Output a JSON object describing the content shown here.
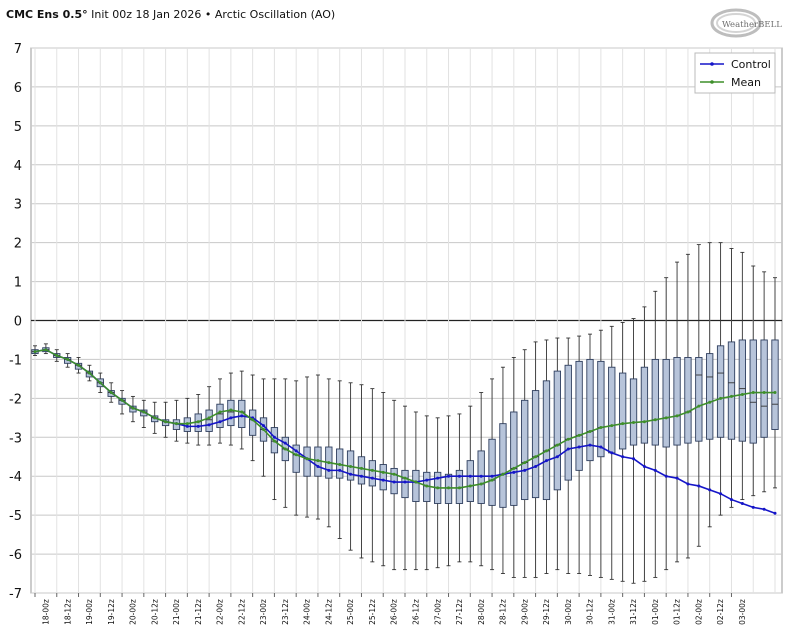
{
  "header": {
    "model": "CMC Ens 0.5°",
    "rest": "Init 00z 18 Jan 2026 • Arctic Oscillation (AO)",
    "logo_text": "WeatherBELL"
  },
  "chart_data": {
    "type": "box",
    "title": "CMC Ens 0.5° Init 00z 18 Jan 2026 • Arctic Oscillation (AO)",
    "ylim": [
      -7,
      7
    ],
    "yticks": [
      -7,
      -6,
      -5,
      -4,
      -3,
      -2,
      -1,
      0,
      1,
      2,
      3,
      4,
      5,
      6,
      7
    ],
    "grid": true,
    "legend_position": "top-right",
    "x_labels": [
      "18-00z",
      "18-12z",
      "19-00z",
      "19-12z",
      "20-00z",
      "20-12z",
      "21-00z",
      "21-12z",
      "22-00z",
      "22-12z",
      "23-00z",
      "23-12z",
      "24-00z",
      "24-12z",
      "25-00z",
      "25-12z",
      "26-00z",
      "26-12z",
      "27-00z",
      "27-12z",
      "28-00z",
      "28-12z",
      "29-00z",
      "29-12z",
      "30-00z",
      "30-12z",
      "31-00z",
      "31-12z",
      "01-00z",
      "01-12z",
      "02-00z",
      "02-12z",
      "03-00z"
    ],
    "series": [
      {
        "name": "Control",
        "color": "#1515c8",
        "values": [
          -0.8,
          -0.75,
          -0.9,
          -1.0,
          -1.15,
          -1.35,
          -1.6,
          -1.85,
          -2.05,
          -2.25,
          -2.35,
          -2.5,
          -2.6,
          -2.65,
          -2.72,
          -2.72,
          -2.68,
          -2.6,
          -2.5,
          -2.45,
          -2.5,
          -2.7,
          -3.0,
          -3.15,
          -3.35,
          -3.55,
          -3.75,
          -3.85,
          -3.85,
          -3.95,
          -4.0,
          -4.05,
          -4.1,
          -4.15,
          -4.15,
          -4.15,
          -4.1,
          -4.05,
          -4.0,
          -4.0,
          -4.0,
          -4.0,
          -4.0,
          -3.95,
          -3.9,
          -3.85,
          -3.75,
          -3.6,
          -3.5,
          -3.3,
          -3.25,
          -3.2,
          -3.25,
          -3.4,
          -3.5,
          -3.55,
          -3.75,
          -3.85,
          -4.0,
          -4.05,
          -4.2,
          -4.25,
          -4.35,
          -4.45,
          -4.6,
          -4.7,
          -4.8,
          -4.85,
          -4.95
        ]
      },
      {
        "name": "Mean",
        "color": "#3e8f2a",
        "values": [
          -0.8,
          -0.75,
          -0.9,
          -1.0,
          -1.15,
          -1.35,
          -1.6,
          -1.85,
          -2.05,
          -2.25,
          -2.35,
          -2.5,
          -2.6,
          -2.65,
          -2.65,
          -2.6,
          -2.5,
          -2.35,
          -2.3,
          -2.35,
          -2.55,
          -2.8,
          -3.1,
          -3.3,
          -3.45,
          -3.55,
          -3.6,
          -3.65,
          -3.7,
          -3.75,
          -3.8,
          -3.85,
          -3.9,
          -3.95,
          -4.05,
          -4.15,
          -4.25,
          -4.3,
          -4.3,
          -4.3,
          -4.25,
          -4.2,
          -4.1,
          -3.95,
          -3.8,
          -3.65,
          -3.5,
          -3.35,
          -3.2,
          -3.05,
          -2.95,
          -2.85,
          -2.75,
          -2.7,
          -2.65,
          -2.62,
          -2.6,
          -2.55,
          -2.5,
          -2.45,
          -2.35,
          -2.2,
          -2.1,
          -2.0,
          -1.95,
          -1.9,
          -1.85,
          -1.85,
          -1.85
        ]
      }
    ],
    "boxes": {
      "lower_whisker": [
        -0.9,
        -0.85,
        -1.05,
        -1.2,
        -1.35,
        -1.55,
        -1.85,
        -2.1,
        -2.4,
        -2.6,
        -2.75,
        -2.9,
        -3.0,
        -3.1,
        -3.15,
        -3.2,
        -3.2,
        -3.15,
        -3.2,
        -3.3,
        -3.6,
        -4.0,
        -4.6,
        -4.8,
        -5.0,
        -5.05,
        -5.1,
        -5.3,
        -5.6,
        -5.9,
        -6.1,
        -6.2,
        -6.3,
        -6.4,
        -6.4,
        -6.4,
        -6.4,
        -6.35,
        -6.3,
        -6.2,
        -6.2,
        -6.3,
        -6.4,
        -6.5,
        -6.6,
        -6.6,
        -6.6,
        -6.5,
        -6.4,
        -6.5,
        -6.5,
        -6.55,
        -6.6,
        -6.65,
        -6.7,
        -6.75,
        -6.7,
        -6.6,
        -6.4,
        -6.2,
        -6.1,
        -5.8,
        -5.3,
        -5.0,
        -4.8,
        -4.6,
        -4.5,
        -4.4,
        -4.3
      ],
      "q1": [
        -0.85,
        -0.8,
        -0.95,
        -1.1,
        -1.25,
        -1.45,
        -1.7,
        -1.95,
        -2.15,
        -2.35,
        -2.45,
        -2.6,
        -2.7,
        -2.8,
        -2.85,
        -2.85,
        -2.85,
        -2.75,
        -2.7,
        -2.75,
        -2.95,
        -3.1,
        -3.4,
        -3.6,
        -3.9,
        -4.0,
        -4.0,
        -4.05,
        -4.05,
        -4.1,
        -4.2,
        -4.25,
        -4.35,
        -4.45,
        -4.55,
        -4.65,
        -4.65,
        -4.7,
        -4.7,
        -4.7,
        -4.65,
        -4.7,
        -4.75,
        -4.8,
        -4.75,
        -4.6,
        -4.55,
        -4.6,
        -4.35,
        -4.1,
        -3.85,
        -3.6,
        -3.5,
        -3.4,
        -3.3,
        -3.2,
        -3.15,
        -3.2,
        -3.25,
        -3.2,
        -3.15,
        -3.1,
        -3.05,
        -3.0,
        -3.05,
        -3.1,
        -3.15,
        -3.0,
        -2.8
      ],
      "q3": [
        -0.75,
        -0.7,
        -0.85,
        -0.95,
        -1.1,
        -1.3,
        -1.5,
        -1.8,
        -2.0,
        -2.2,
        -2.3,
        -2.45,
        -2.55,
        -2.55,
        -2.5,
        -2.4,
        -2.3,
        -2.15,
        -2.05,
        -2.05,
        -2.3,
        -2.5,
        -2.75,
        -3.0,
        -3.2,
        -3.25,
        -3.25,
        -3.25,
        -3.3,
        -3.35,
        -3.5,
        -3.6,
        -3.7,
        -3.8,
        -3.85,
        -3.85,
        -3.9,
        -3.9,
        -3.95,
        -3.85,
        -3.6,
        -3.35,
        -3.05,
        -2.65,
        -2.35,
        -2.05,
        -1.8,
        -1.55,
        -1.3,
        -1.15,
        -1.05,
        -1.0,
        -1.05,
        -1.2,
        -1.35,
        -1.5,
        -1.2,
        -1.0,
        -1.0,
        -0.95,
        -0.95,
        -0.95,
        -0.85,
        -0.65,
        -0.55,
        -0.5,
        -0.5,
        -0.5,
        -0.5
      ],
      "upper_whisker": [
        -0.65,
        -0.6,
        -0.75,
        -0.85,
        -0.95,
        -1.15,
        -1.35,
        -1.6,
        -1.8,
        -1.95,
        -2.05,
        -2.1,
        -2.1,
        -2.05,
        -2.0,
        -1.9,
        -1.7,
        -1.5,
        -1.35,
        -1.3,
        -1.4,
        -1.5,
        -1.5,
        -1.5,
        -1.55,
        -1.45,
        -1.4,
        -1.5,
        -1.55,
        -1.6,
        -1.65,
        -1.75,
        -1.85,
        -2.05,
        -2.2,
        -2.35,
        -2.45,
        -2.5,
        -2.45,
        -2.4,
        -2.2,
        -1.85,
        -1.5,
        -1.2,
        -0.95,
        -0.75,
        -0.55,
        -0.5,
        -0.45,
        -0.45,
        -0.4,
        -0.35,
        -0.25,
        -0.15,
        -0.05,
        0.05,
        0.35,
        0.75,
        1.1,
        1.5,
        1.7,
        1.95,
        2.0,
        2.0,
        1.85,
        1.75,
        1.4,
        1.25,
        1.1
      ],
      "mid_line": [
        -0.8,
        -0.75,
        -0.9,
        -1.0,
        -1.15,
        -1.35,
        -1.6,
        -1.85,
        -2.05,
        -2.25,
        -2.35,
        -2.5,
        -2.6,
        -2.65,
        -2.65,
        -2.6,
        -2.55,
        -2.4,
        -2.35,
        -2.35,
        -2.55,
        -2.8,
        -3.1,
        -3.3,
        -3.45,
        -3.55,
        -3.6,
        -3.65,
        -3.7,
        -3.75,
        -3.8,
        -3.85,
        -3.9,
        -3.95,
        -4.05,
        -4.15,
        -4.25,
        -4.3,
        -4.3,
        -4.3,
        -4.25,
        -4.2,
        -4.1,
        -3.95,
        -3.8,
        -3.65,
        -3.5,
        -3.35,
        -3.2,
        -3.05,
        -2.95,
        -2.85,
        -2.75,
        -2.7,
        -2.65,
        -2.62,
        -2.6,
        -2.55,
        -2.5,
        -2.45,
        -2.35,
        -1.4,
        -1.45,
        -1.35,
        -1.6,
        -1.75,
        -2.1,
        -2.2,
        -2.15
      ]
    },
    "colors": {
      "box_fill": "#b7c4da",
      "box_stroke": "#2f3f5f",
      "grid": "#c8c8c8",
      "zero_line": "#222222"
    }
  }
}
